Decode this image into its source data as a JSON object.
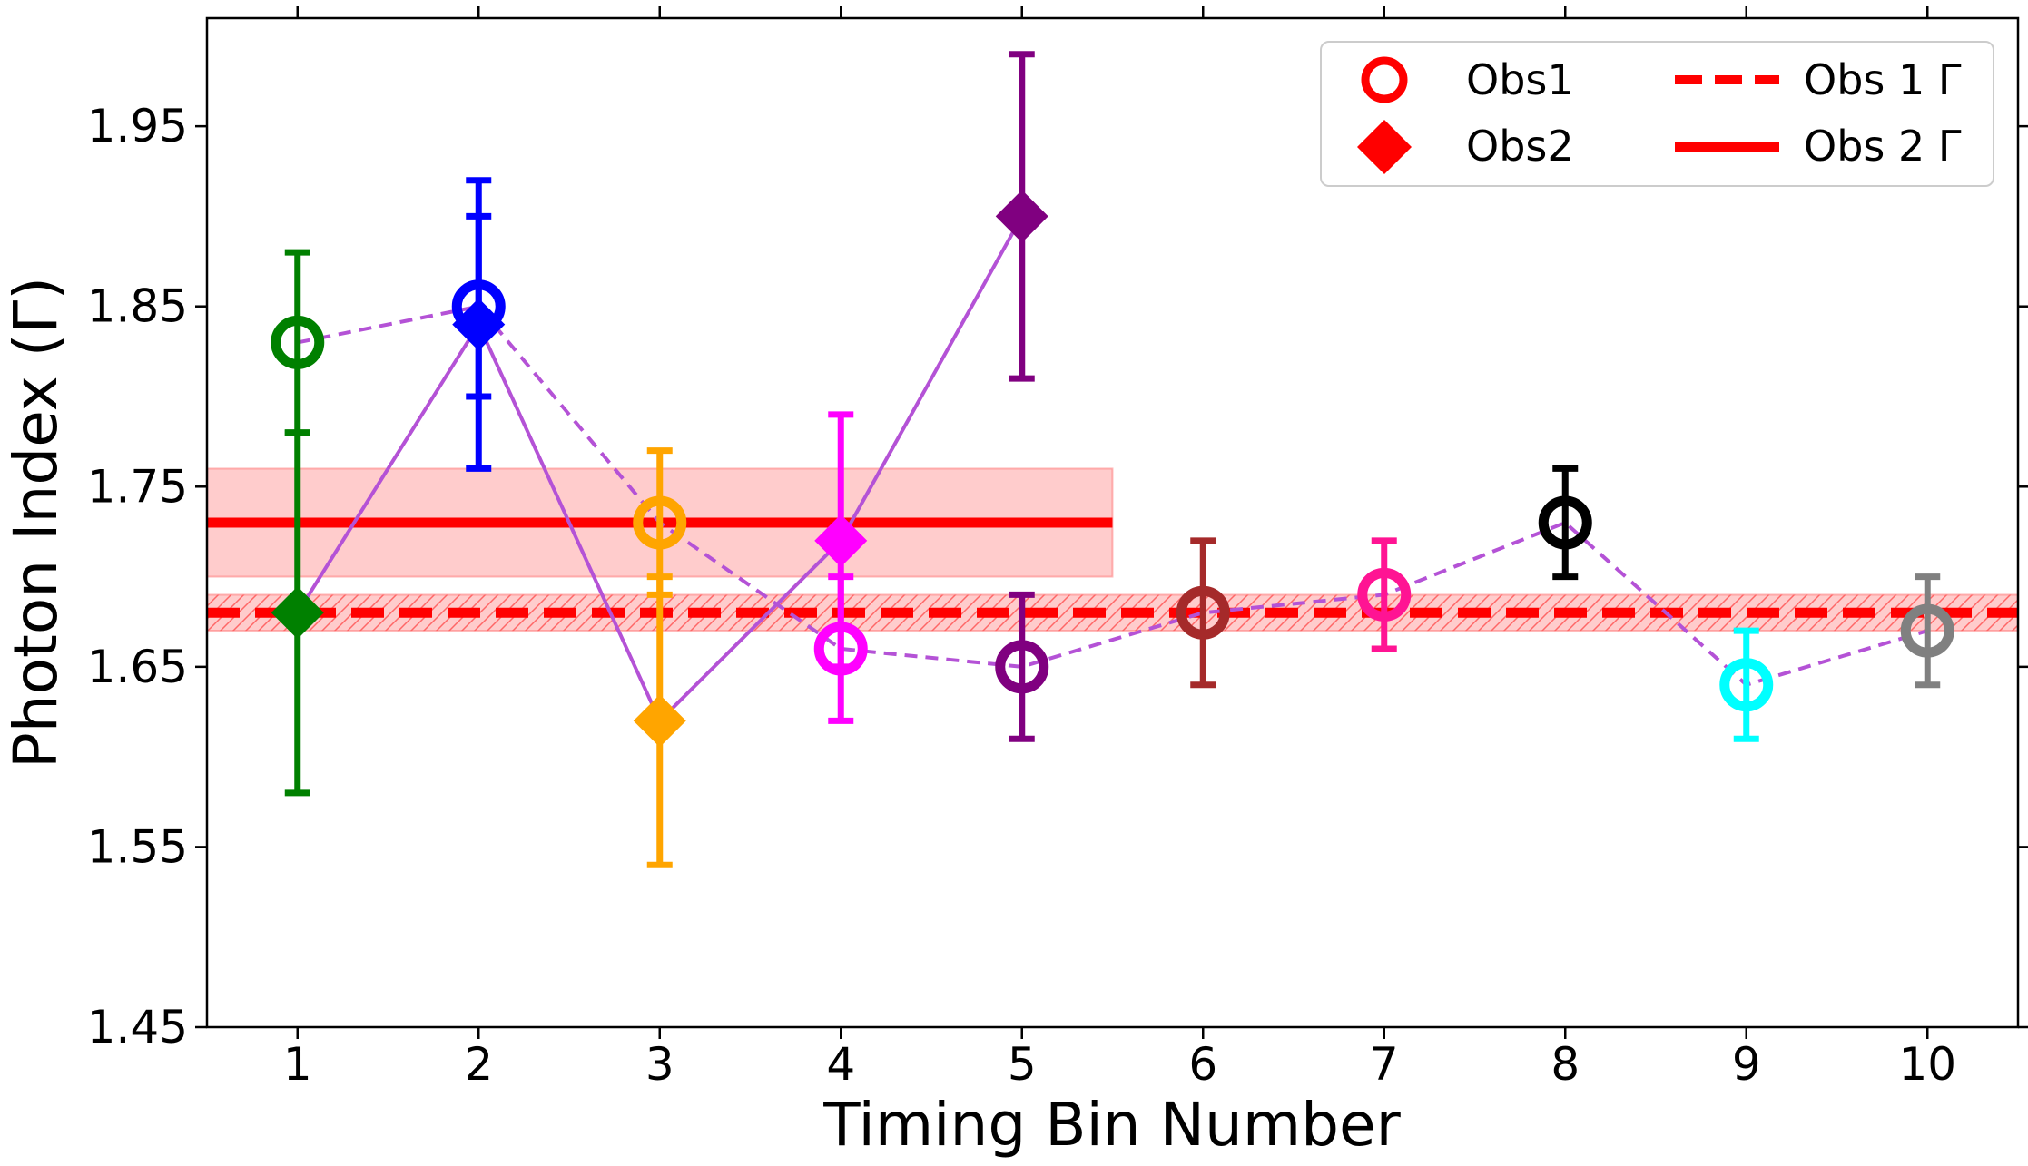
{
  "chart_data": {
    "type": "scatter",
    "xlabel": "Timing Bin Number",
    "ylabel": "Photon Index (Γ)",
    "xlim": [
      0.5,
      10.5
    ],
    "ylim": [
      1.45,
      2.01
    ],
    "xticks": [
      1,
      2,
      3,
      4,
      5,
      6,
      7,
      8,
      9,
      10
    ],
    "xtick_labels": [
      "1",
      "2",
      "3",
      "4",
      "5",
      "6",
      "7",
      "8",
      "9",
      "10"
    ],
    "yticks": [
      1.45,
      1.55,
      1.65,
      1.75,
      1.85,
      1.95
    ],
    "ytick_labels": [
      "1.45",
      "1.55",
      "1.65",
      "1.75",
      "1.85",
      "1.95"
    ],
    "colors": [
      "#008000",
      "#0000ff",
      "#ffa500",
      "#ff00ff",
      "#800080",
      "#a52a2a",
      "#ff1493",
      "#000000",
      "#00ffff",
      "#808080"
    ],
    "connector_color": "#b452d6",
    "band_color": "#ff0000",
    "series": [
      {
        "name": "Obs1",
        "marker": "open-circle",
        "line_style": "dashed",
        "x": [
          1,
          2,
          3,
          4,
          5,
          6,
          7,
          8,
          9,
          10
        ],
        "y": [
          1.83,
          1.85,
          1.73,
          1.66,
          1.65,
          1.68,
          1.69,
          1.73,
          1.64,
          1.67
        ],
        "yerr_low": [
          1.78,
          1.8,
          1.69,
          1.62,
          1.61,
          1.64,
          1.66,
          1.7,
          1.61,
          1.64
        ],
        "yerr_high": [
          1.88,
          1.9,
          1.77,
          1.7,
          1.69,
          1.72,
          1.72,
          1.76,
          1.67,
          1.7
        ]
      },
      {
        "name": "Obs2",
        "marker": "filled-diamond",
        "line_style": "solid",
        "x": [
          1,
          2,
          3,
          4,
          5
        ],
        "y": [
          1.68,
          1.84,
          1.62,
          1.72,
          1.9
        ],
        "yerr_low": [
          1.58,
          1.76,
          1.54,
          1.65,
          1.81
        ],
        "yerr_high": [
          1.78,
          1.92,
          1.7,
          1.79,
          1.99
        ]
      }
    ],
    "reference_lines": [
      {
        "name": "Obs 1 Γ",
        "value": 1.68,
        "band": [
          1.67,
          1.69
        ],
        "style": "dashed",
        "x_range": [
          0.5,
          10.5
        ],
        "hatched": true
      },
      {
        "name": "Obs 2 Γ",
        "value": 1.73,
        "band": [
          1.7,
          1.76
        ],
        "style": "solid",
        "x_range": [
          0.5,
          5.5
        ],
        "hatched": false
      }
    ],
    "legend": {
      "position": "top-right",
      "entries": [
        {
          "label": "Obs1",
          "symbol": "open-circle"
        },
        {
          "label": "Obs 1 Γ",
          "symbol": "dashed-line"
        },
        {
          "label": "Obs2",
          "symbol": "filled-diamond"
        },
        {
          "label": "Obs 2 Γ",
          "symbol": "solid-line"
        }
      ]
    }
  }
}
